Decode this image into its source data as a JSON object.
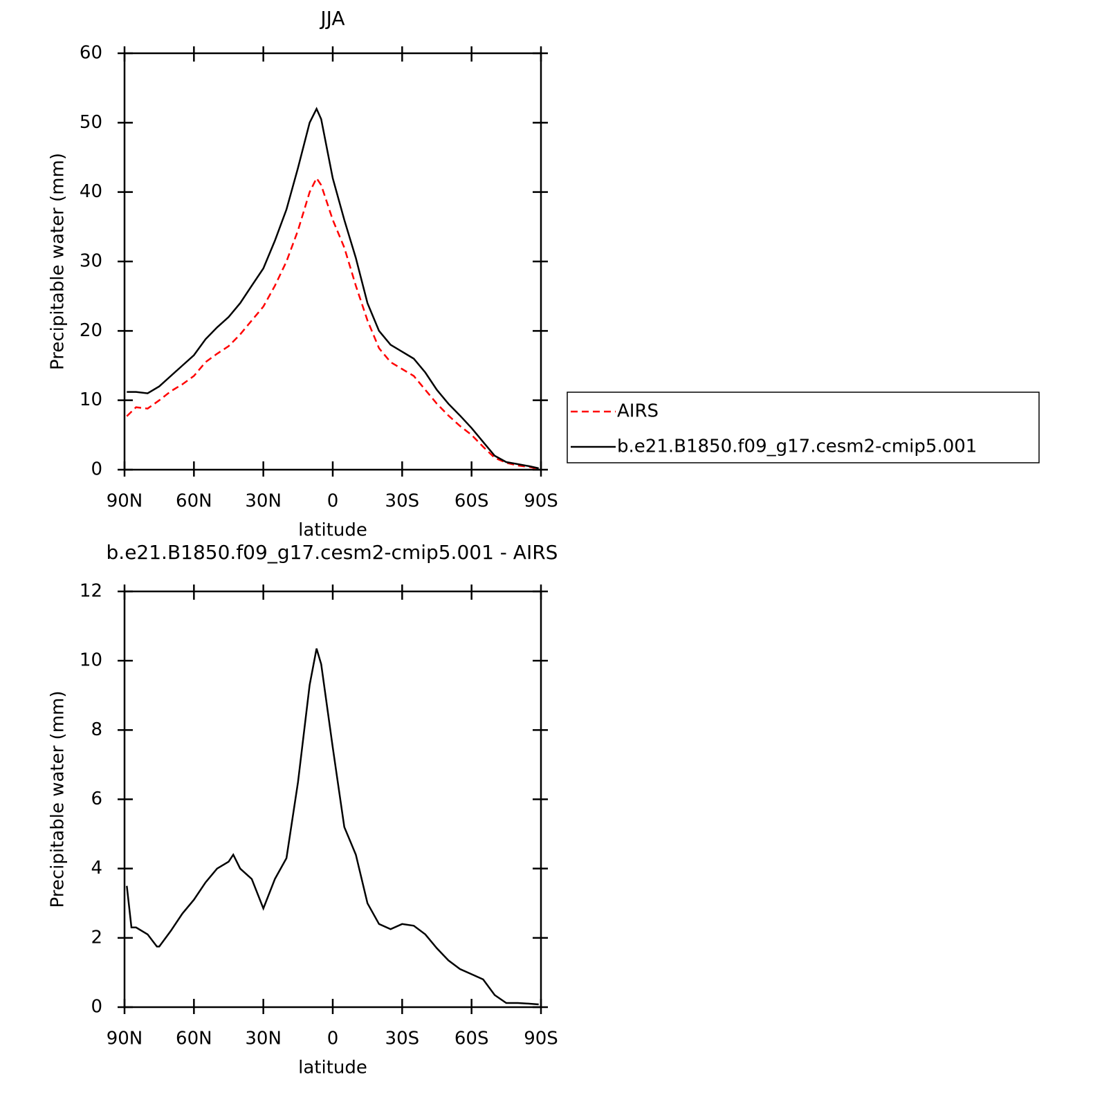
{
  "chart_data": [
    {
      "type": "line",
      "title": "JJA",
      "xlabel": "latitude",
      "ylabel": "Precipitable water (mm)",
      "x": [
        89,
        85,
        80,
        75,
        70,
        65,
        60,
        55,
        50,
        45,
        40,
        35,
        30,
        25,
        20,
        15,
        10,
        7,
        5,
        0,
        -5,
        -10,
        -15,
        -20,
        -25,
        -30,
        -35,
        -40,
        -45,
        -50,
        -55,
        -60,
        -65,
        -70,
        -75,
        -80,
        -85,
        -89
      ],
      "series": [
        {
          "name": "AIRS",
          "color": "#ff0000",
          "dashed": true,
          "values": [
            7.7,
            9,
            8.8,
            10,
            11.3,
            12.3,
            13.5,
            15.5,
            16.7,
            17.8,
            19.5,
            21.5,
            23.5,
            26.5,
            30,
            34.5,
            40,
            42,
            41,
            36,
            32,
            26.5,
            21.5,
            17.5,
            15.5,
            14.5,
            13.5,
            11.5,
            9.5,
            7.8,
            6.3,
            5,
            3.3,
            1.7,
            1,
            0.6,
            0.4,
            0.1
          ]
        },
        {
          "name": "b.e21.B1850.f09_g17.cesm2-cmip5.001",
          "color": "#000000",
          "dashed": false,
          "values": [
            11.2,
            11.2,
            11,
            12,
            13.5,
            15,
            16.5,
            18.8,
            20.5,
            22,
            24,
            26.5,
            29,
            33,
            37.5,
            43.5,
            50,
            52,
            50.5,
            42,
            36,
            30.5,
            24,
            20,
            18,
            17,
            16,
            14,
            11.5,
            9.5,
            7.8,
            6,
            4,
            2,
            1.1,
            0.8,
            0.5,
            0.2
          ]
        }
      ],
      "xlim": [
        90,
        -90
      ],
      "xticks": [
        {
          "value": 90,
          "label": "90N"
        },
        {
          "value": 60,
          "label": "60N"
        },
        {
          "value": 30,
          "label": "30N"
        },
        0,
        {
          "value": -30,
          "label": "30S"
        },
        {
          "value": -60,
          "label": "60S"
        },
        {
          "value": -90,
          "label": "90S"
        }
      ],
      "ylim": [
        0,
        60
      ],
      "yticks": [
        0,
        10,
        20,
        30,
        40,
        50,
        60
      ],
      "legend": "right"
    },
    {
      "type": "line",
      "title": "b.e21.B1850.f09_g17.cesm2-cmip5.001 - AIRS",
      "xlabel": "latitude",
      "ylabel": "Precipitable water (mm)",
      "x": [
        89,
        87,
        85,
        80,
        76,
        75,
        70,
        65,
        60,
        55,
        50,
        45,
        43,
        40,
        35,
        30,
        25,
        20,
        15,
        10,
        7,
        5,
        0,
        -5,
        -10,
        -15,
        -20,
        -25,
        -30,
        -35,
        -40,
        -45,
        -50,
        -55,
        -60,
        -65,
        -70,
        -75,
        -80,
        -85,
        -89
      ],
      "series": [
        {
          "name": "b.e21.B1850.f09_g17.cesm2-cmip5.001 - AIRS",
          "color": "#000000",
          "dashed": false,
          "values": [
            3.5,
            2.3,
            2.3,
            2.1,
            1.75,
            1.75,
            2.2,
            2.7,
            3.1,
            3.6,
            4.0,
            4.2,
            4.4,
            4.0,
            3.7,
            2.85,
            3.7,
            4.3,
            6.5,
            9.3,
            10.35,
            9.9,
            7.5,
            5.2,
            4.4,
            3.0,
            2.4,
            2.25,
            2.4,
            2.35,
            2.1,
            1.7,
            1.35,
            1.1,
            0.95,
            0.8,
            0.35,
            0.12,
            0.12,
            0.1,
            0.08
          ]
        }
      ],
      "xlim": [
        90,
        -90
      ],
      "xticks": [
        {
          "value": 90,
          "label": "90N"
        },
        {
          "value": 60,
          "label": "60N"
        },
        {
          "value": 30,
          "label": "30N"
        },
        0,
        {
          "value": -30,
          "label": "30S"
        },
        {
          "value": -60,
          "label": "60S"
        },
        {
          "value": -90,
          "label": "90S"
        }
      ],
      "ylim": [
        0,
        12
      ],
      "yticks": [
        0,
        2,
        4,
        6,
        8,
        10,
        12
      ]
    }
  ]
}
